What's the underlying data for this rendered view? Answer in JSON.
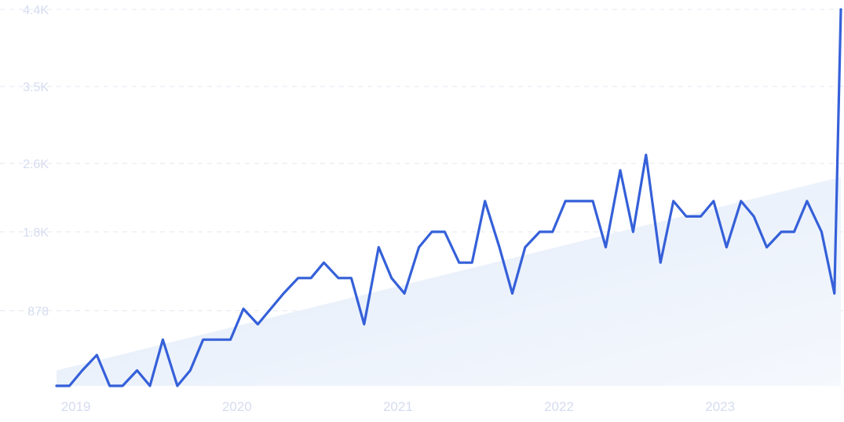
{
  "chart_data": {
    "type": "line",
    "title": "",
    "xlabel": "",
    "ylabel": "",
    "ylim": [
      0,
      4400
    ],
    "grid": true,
    "y_ticks": [
      {
        "value": 878,
        "label": "878"
      },
      {
        "value": 1800,
        "label": "1.8K"
      },
      {
        "value": 2600,
        "label": "2.6K"
      },
      {
        "value": 3500,
        "label": "3.5K"
      },
      {
        "value": 4400,
        "label": "4.4K"
      }
    ],
    "x_range": [
      2018.88,
      2023.75
    ],
    "x_ticks": [
      {
        "value": 2019.0,
        "label": "2019"
      },
      {
        "value": 2020.0,
        "label": "2020"
      },
      {
        "value": 2021.0,
        "label": "2021"
      },
      {
        "value": 2022.0,
        "label": "2022"
      },
      {
        "value": 2023.0,
        "label": "2023"
      }
    ],
    "trend": {
      "start": 180,
      "end": 2440
    },
    "colors": {
      "line": "#3560d9",
      "trend_fill": "#e6effb",
      "grid": "#e3e7f0",
      "tick_text": "#d5dcf0"
    },
    "series": [
      {
        "x": [
          2018.88,
          2018.96,
          2019.04,
          2019.13,
          2019.21,
          2019.29,
          2019.38,
          2019.46,
          2019.54,
          2019.63,
          2019.71,
          2019.79,
          2019.88,
          2019.96,
          2020.04,
          2020.13,
          2020.21,
          2020.29,
          2020.38,
          2020.46,
          2020.54,
          2020.63,
          2020.71,
          2020.79,
          2020.88,
          2020.96,
          2021.04,
          2021.13,
          2021.21,
          2021.29,
          2021.38,
          2021.46,
          2021.54,
          2021.63,
          2021.71,
          2021.79,
          2021.88,
          2021.96,
          2022.04,
          2022.13,
          2022.21,
          2022.29,
          2022.38,
          2022.46,
          2022.54,
          2022.63,
          2022.71,
          2022.79,
          2022.88,
          2022.96,
          2023.04,
          2023.13,
          2023.21,
          2023.29,
          2023.38,
          2023.46,
          2023.54,
          2023.63,
          2023.71,
          2023.75
        ],
        "values": [
          0,
          0,
          180,
          360,
          0,
          0,
          180,
          0,
          540,
          0,
          180,
          540,
          540,
          540,
          900,
          720,
          900,
          1080,
          1260,
          1260,
          1440,
          1260,
          1260,
          720,
          1620,
          1260,
          1080,
          1620,
          1800,
          1800,
          1440,
          1440,
          2160,
          1620,
          1080,
          1620,
          1800,
          1800,
          2160,
          2160,
          2160,
          1620,
          2520,
          1800,
          2700,
          1440,
          2160,
          1980,
          1980,
          2160,
          1620,
          2160,
          1980,
          1620,
          1800,
          1800,
          2160,
          1800,
          1080,
          4400
        ]
      }
    ]
  }
}
